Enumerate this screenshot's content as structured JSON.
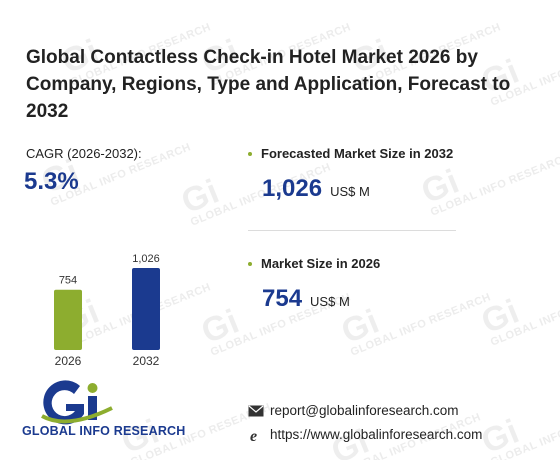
{
  "title": "Global Contactless Check-in Hotel Market 2026 by Company, Regions, Type and Application, Forecast to 2032",
  "cagr": {
    "label": "CAGR (2026-2032):",
    "value": "5.3%"
  },
  "forecast": {
    "label": "Forecasted Market Size in 2032",
    "value": "1,026",
    "unit": "US$ M"
  },
  "current": {
    "label": "Market Size in 2026",
    "value": "754",
    "unit": "US$ M"
  },
  "chart_data": {
    "type": "bar",
    "categories": [
      "2026",
      "2032"
    ],
    "values": [
      754,
      1026
    ],
    "value_labels": [
      "754",
      "1,026"
    ],
    "colors": [
      "#8dad2f",
      "#1b3a8f"
    ]
  },
  "logo": {
    "name": "GLOBAL INFO RESEARCH"
  },
  "contact": {
    "email": "report@globalinforesearch.com",
    "website": "https://www.globalinforesearch.com"
  },
  "icons": {
    "email": "envelope-icon",
    "website": "browser-e-icon"
  },
  "watermark_text": "GLOBAL INFO RESEARCH"
}
